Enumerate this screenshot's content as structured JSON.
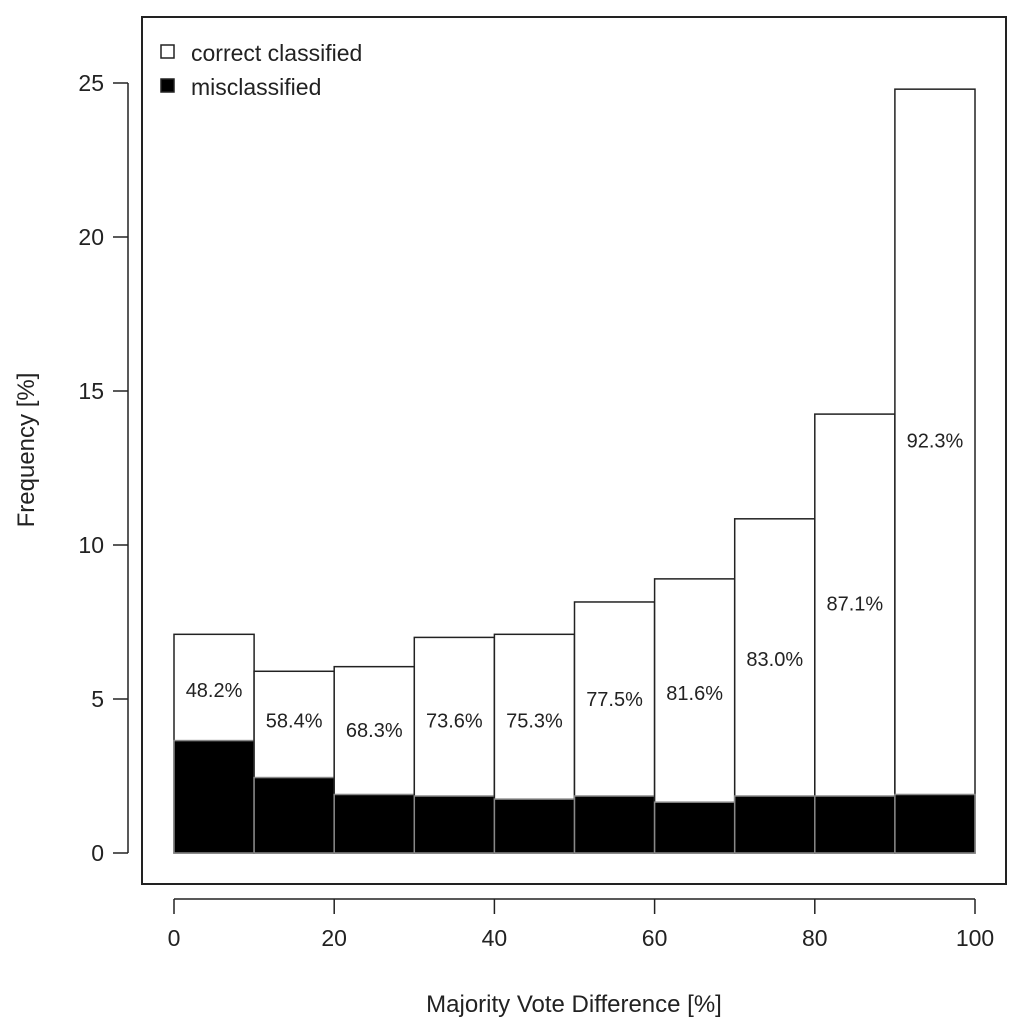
{
  "chart_data": {
    "type": "bar",
    "subtype": "stacked-histogram",
    "xlabel": "Majority Vote Difference [%]",
    "ylabel": "Frequency [%]",
    "xlim": [
      0,
      100
    ],
    "ylim": [
      0,
      25
    ],
    "x_ticks": [
      0,
      20,
      40,
      60,
      80,
      100
    ],
    "y_ticks": [
      0,
      5,
      10,
      15,
      20,
      25
    ],
    "grid": false,
    "legend_position": "top-left",
    "bins": [
      {
        "x0": 0,
        "x1": 10,
        "total": 7.1,
        "misclassified": 3.65,
        "label": "48.2%",
        "label_y": 5.3
      },
      {
        "x0": 10,
        "x1": 20,
        "total": 5.9,
        "misclassified": 2.45,
        "label": "58.4%",
        "label_y": 4.3
      },
      {
        "x0": 20,
        "x1": 30,
        "total": 6.05,
        "misclassified": 1.9,
        "label": "68.3%",
        "label_y": 4.0
      },
      {
        "x0": 30,
        "x1": 40,
        "total": 7.0,
        "misclassified": 1.85,
        "label": "73.6%",
        "label_y": 4.3
      },
      {
        "x0": 40,
        "x1": 50,
        "total": 7.1,
        "misclassified": 1.75,
        "label": "75.3%",
        "label_y": 4.3
      },
      {
        "x0": 50,
        "x1": 60,
        "total": 8.15,
        "misclassified": 1.85,
        "label": "77.5%",
        "label_y": 5.0
      },
      {
        "x0": 60,
        "x1": 70,
        "total": 8.9,
        "misclassified": 1.65,
        "label": "81.6%",
        "label_y": 5.2
      },
      {
        "x0": 70,
        "x1": 80,
        "total": 10.85,
        "misclassified": 1.85,
        "label": "83.0%",
        "label_y": 6.3
      },
      {
        "x0": 80,
        "x1": 90,
        "total": 14.25,
        "misclassified": 1.85,
        "label": "87.1%",
        "label_y": 8.1
      },
      {
        "x0": 90,
        "x1": 100,
        "total": 24.8,
        "misclassified": 1.9,
        "label": "92.3%",
        "label_y": 13.4
      }
    ],
    "series": [
      {
        "name": "correct classified",
        "color": "#ffffff"
      },
      {
        "name": "misclassified",
        "color": "#000000"
      }
    ]
  }
}
